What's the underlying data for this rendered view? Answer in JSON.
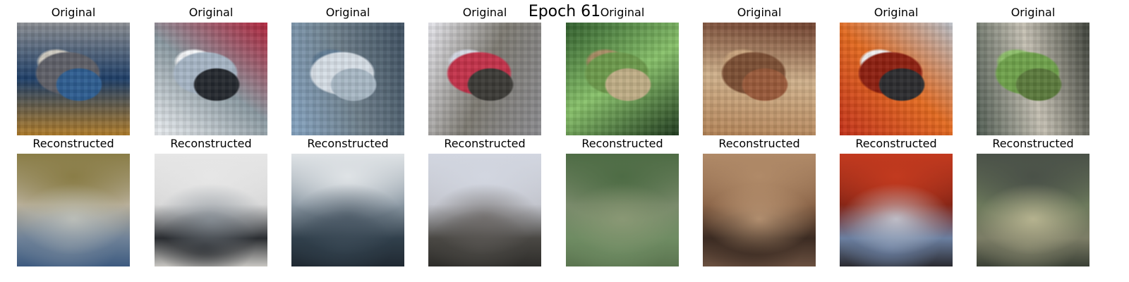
{
  "figure": {
    "title": "Epoch 61",
    "original_label": "Original",
    "reconstructed_label": "Reconstructed"
  },
  "panels": [
    {
      "original": {
        "depicts": "cat",
        "colors": [
          "#b17d2a",
          "#5f6068",
          "#d0cbc1",
          "#2d5d91",
          "#8a8d92",
          "#1d3e68"
        ]
      },
      "reconstructed": {
        "colors": [
          "#8a7d47",
          "#b9b09b",
          "#c5c7c0",
          "#6f8298",
          "#3e5b80"
        ]
      }
    },
    {
      "original": {
        "depicts": "ship",
        "colors": [
          "#eef1f4",
          "#a7b6c6",
          "#f5f7f9",
          "#24282e",
          "#b0233b",
          "#8b9aa2"
        ]
      },
      "reconstructed": {
        "colors": [
          "#e6e6e6",
          "#d8d8d8",
          "#8a929a",
          "#2a2d31",
          "#c8c6c2"
        ]
      }
    },
    {
      "original": {
        "depicts": "ship",
        "colors": [
          "#87a6c4",
          "#d7dfe7",
          "#5e7a93",
          "#a8b8c5",
          "#3c4e5f",
          "#6e7f8b"
        ]
      },
      "reconstructed": {
        "colors": [
          "#dfe3e6",
          "#8b98a3",
          "#4b5966",
          "#31404c",
          "#202932"
        ]
      }
    },
    {
      "original": {
        "depicts": "airplane",
        "colors": [
          "#e8e8ee",
          "#c4324a",
          "#d7dbe6",
          "#3b3a36",
          "#8c8c90",
          "#7d7a72"
        ]
      },
      "reconstructed": {
        "colors": [
          "#d2d6e0",
          "#c2c4cc",
          "#6e6a68",
          "#4a4844",
          "#2e2d2a"
        ]
      }
    },
    {
      "original": {
        "depicts": "frog",
        "colors": [
          "#2f5d2b",
          "#6c9a4b",
          "#a88c64",
          "#c0ae86",
          "#1f3a1d",
          "#88c26a"
        ]
      },
      "reconstructed": {
        "colors": [
          "#4e6c45",
          "#7b8b6c",
          "#8f9b78",
          "#6f8c63",
          "#5b7550"
        ]
      }
    },
    {
      "original": {
        "depicts": "frog",
        "colors": [
          "#b58457",
          "#7c4f34",
          "#c9a37c",
          "#9a5a3a",
          "#6e3e2b",
          "#d1b28c"
        ]
      },
      "reconstructed": {
        "colors": [
          "#b08a68",
          "#8a6448",
          "#c5a07d",
          "#3b2b22",
          "#6a5040"
        ]
      }
    },
    {
      "original": {
        "depicts": "car",
        "colors": [
          "#c6321a",
          "#8e1f10",
          "#f1f1f1",
          "#2b2b2e",
          "#b8bec6",
          "#e46a1f"
        ]
      },
      "reconstructed": {
        "colors": [
          "#c23a1f",
          "#862516",
          "#cfd5de",
          "#6b7fa0",
          "#2a2a30"
        ]
      }
    },
    {
      "original": {
        "depicts": "frog",
        "colors": [
          "#4e5a50",
          "#6fa24b",
          "#8ec06a",
          "#5b7a3c",
          "#3b3f37",
          "#c6c1b4"
        ]
      },
      "reconstructed": {
        "colors": [
          "#4a5148",
          "#6d7a5c",
          "#c5c09a",
          "#7c7d66",
          "#3a4035"
        ]
      }
    }
  ]
}
